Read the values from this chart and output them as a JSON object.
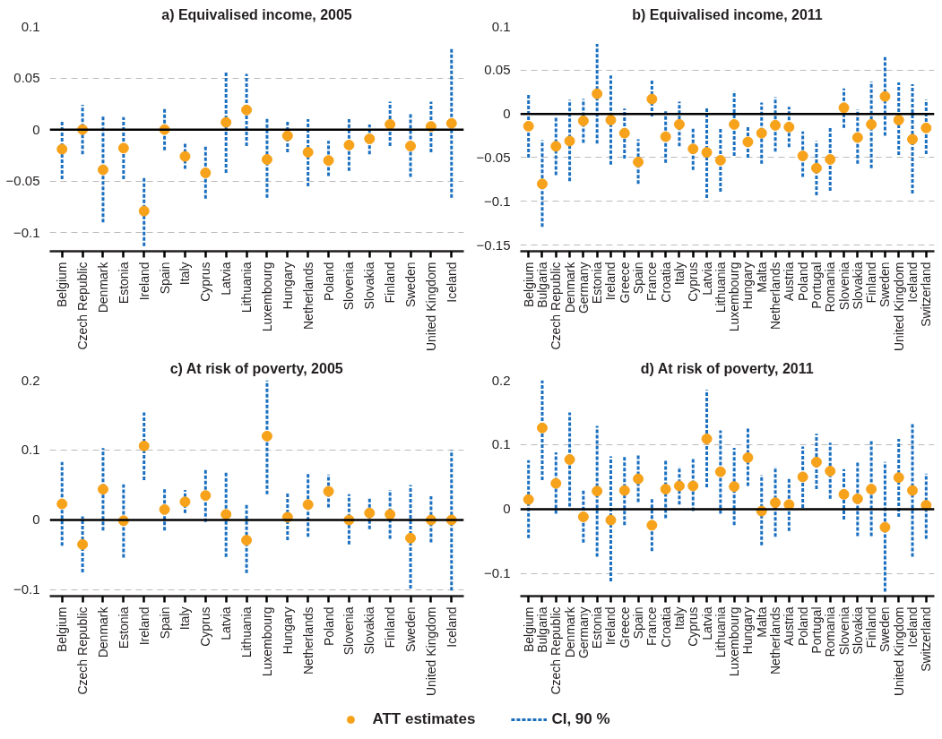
{
  "chart_data": [
    {
      "type": "scatter",
      "title": "a) Equivalised income, 2005",
      "categories": [
        "Belgium",
        "Czech Republic",
        "Denmark",
        "Estonia",
        "Ireland",
        "Spain",
        "Italy",
        "Cyprus",
        "Latvia",
        "Lithuania",
        "Luxembourg",
        "Hungary",
        "Netherlands",
        "Poland",
        "Slovenia",
        "Slovakia",
        "Finland",
        "Sweden",
        "United Kingdom",
        "Iceland"
      ],
      "series": [
        {
          "color": "#f7a21b",
          "values": [
            -0.019,
            0,
            -0.039,
            -0.018,
            -0.079,
            0,
            -0.026,
            -0.042,
            0.007,
            0.019,
            -0.029,
            -0.006,
            -0.022,
            -0.03,
            -0.015,
            -0.009,
            0.005,
            -0.016,
            0.003,
            0.006
          ],
          "errors": [
            [
              -0.048,
              0.009
            ],
            [
              -0.024,
              0.024
            ],
            [
              -0.09,
              0.014
            ],
            [
              -0.048,
              0.012
            ],
            [
              -0.113,
              -0.046
            ],
            [
              -0.02,
              0.02
            ],
            [
              -0.038,
              -0.013
            ],
            [
              -0.067,
              -0.016
            ],
            [
              -0.042,
              0.057
            ],
            [
              -0.016,
              0.054
            ],
            [
              -0.066,
              0.011
            ],
            [
              -0.022,
              0.009
            ],
            [
              -0.055,
              0.01
            ],
            [
              -0.045,
              -0.011
            ],
            [
              -0.04,
              0.01
            ],
            [
              -0.024,
              0.005
            ],
            [
              -0.016,
              0.027
            ],
            [
              -0.046,
              0.015
            ],
            [
              -0.022,
              0.027
            ],
            [
              -0.066,
              0.078
            ]
          ]
        }
      ],
      "ylim": [
        -0.118,
        0.1
      ],
      "yticks": [
        {
          "value": -0.1,
          "label": "−0.1"
        },
        {
          "value": -0.05,
          "label": "−0.05"
        },
        0,
        0.05,
        0.1
      ],
      "ref_lines": [
        {
          "axis": "y",
          "value": 0,
          "color": "#000000"
        }
      ],
      "grid": "y",
      "marker": "circle"
    },
    {
      "type": "scatter",
      "title": "b) Equivalised income, 2011",
      "categories": [
        "Belgium",
        "Bulgaria",
        "Czech Republic",
        "Denmark",
        "Germany",
        "Estonia",
        "Ireland",
        "Greece",
        "Spain",
        "France",
        "Croatia",
        "Italy",
        "Cyprus",
        "Latvia",
        "Lithuania",
        "Luxembourg",
        "Hungary",
        "Malta",
        "Netherlands",
        "Austria",
        "Poland",
        "Portugal",
        "Romania",
        "Slovenia",
        "Slovakia",
        "Finland",
        "Sweden",
        "United Kingdom",
        "Iceland",
        "Switzerland"
      ],
      "series": [
        {
          "color": "#f7a21b",
          "values": [
            -0.014,
            -0.08,
            -0.037,
            -0.031,
            -0.008,
            0.023,
            -0.007,
            -0.022,
            -0.055,
            0.017,
            -0.026,
            -0.012,
            -0.04,
            -0.044,
            -0.053,
            -0.012,
            -0.032,
            -0.022,
            -0.013,
            -0.015,
            -0.048,
            -0.062,
            -0.052,
            0.007,
            -0.027,
            -0.012,
            0.02,
            -0.007,
            -0.029,
            -0.016
          ],
          "errors": [
            [
              -0.05,
              0.022
            ],
            [
              -0.129,
              -0.03
            ],
            [
              -0.07,
              -0.003
            ],
            [
              -0.077,
              0.016
            ],
            [
              -0.033,
              0.017
            ],
            [
              -0.034,
              0.08
            ],
            [
              -0.058,
              0.044
            ],
            [
              -0.051,
              0.006
            ],
            [
              -0.08,
              -0.029
            ],
            [
              -0.003,
              0.038
            ],
            [
              -0.056,
              0.003
            ],
            [
              -0.037,
              0.014
            ],
            [
              -0.064,
              -0.017
            ],
            [
              -0.096,
              0.008
            ],
            [
              -0.089,
              -0.016
            ],
            [
              -0.048,
              0.026
            ],
            [
              -0.05,
              -0.014
            ],
            [
              -0.057,
              0.013
            ],
            [
              -0.043,
              0.019
            ],
            [
              -0.038,
              0.008
            ],
            [
              -0.072,
              -0.02
            ],
            [
              -0.093,
              -0.031
            ],
            [
              -0.088,
              -0.015
            ],
            [
              -0.016,
              0.029
            ],
            [
              -0.057,
              0.005
            ],
            [
              -0.062,
              0.037
            ],
            [
              -0.025,
              0.065
            ],
            [
              -0.047,
              0.036
            ],
            [
              -0.091,
              0.034
            ],
            [
              -0.046,
              0.016
            ]
          ]
        }
      ],
      "ylim": [
        -0.157,
        0.1
      ],
      "yticks": [
        {
          "value": -0.15,
          "label": "−0.15"
        },
        {
          "value": -0.1,
          "label": "−0.1"
        },
        {
          "value": -0.05,
          "label": "−0.05"
        },
        0,
        0.05,
        0.1
      ],
      "ref_lines": [
        {
          "axis": "y",
          "value": 0,
          "color": "#000000"
        }
      ],
      "grid": "y",
      "marker": "circle"
    },
    {
      "type": "scatter",
      "title": "c) At risk of poverty, 2005",
      "categories": [
        "Belgium",
        "Czech Republic",
        "Denmark",
        "Estonia",
        "Ireland",
        "Spain",
        "Italy",
        "Cyprus",
        "Latvia",
        "Lithuania",
        "Luxembourg",
        "Hungary",
        "Netherlands",
        "Poland",
        "Slovenia",
        "Slovakia",
        "Finland",
        "Sweden",
        "United Kingdom",
        "Iceland"
      ],
      "series": [
        {
          "color": "#f7a21b",
          "values": [
            0.023,
            -0.035,
            0.044,
            -0.001,
            0.106,
            0.015,
            0.026,
            0.035,
            0.008,
            -0.029,
            0.12,
            0.004,
            0.022,
            0.041,
            0,
            0.01,
            0.008,
            -0.026,
            0,
            0
          ],
          "errors": [
            [
              -0.037,
              0.083
            ],
            [
              -0.075,
              0.005
            ],
            [
              -0.015,
              0.103
            ],
            [
              -0.054,
              0.051
            ],
            [
              0.057,
              0.154
            ],
            [
              -0.015,
              0.045
            ],
            [
              0.01,
              0.043
            ],
            [
              -0.003,
              0.073
            ],
            [
              -0.053,
              0.069
            ],
            [
              -0.076,
              0.022
            ],
            [
              0.037,
              0.2
            ],
            [
              -0.029,
              0.038
            ],
            [
              -0.024,
              0.067
            ],
            [
              0.018,
              0.065
            ],
            [
              -0.035,
              0.037
            ],
            [
              -0.013,
              0.033
            ],
            [
              -0.027,
              0.043
            ],
            [
              -0.098,
              0.05
            ],
            [
              -0.032,
              0.034
            ],
            [
              -0.101,
              0.1
            ]
          ]
        }
      ],
      "ylim": [
        -0.109,
        0.2
      ],
      "yticks": [
        {
          "value": -0.1,
          "label": "−0.1"
        },
        0,
        0.1,
        0.2
      ],
      "ref_lines": [
        {
          "axis": "y",
          "value": 0,
          "color": "#000000"
        }
      ],
      "grid": "y",
      "marker": "circle"
    },
    {
      "type": "scatter",
      "title": "d) At risk of poverty, 2011",
      "categories": [
        "Belgium",
        "Bulgaria",
        "Czech Republic",
        "Denmark",
        "Germany",
        "Estonia",
        "Ireland",
        "Greece",
        "Spain",
        "France",
        "Croatia",
        "Italy",
        "Cyprus",
        "Latvia",
        "Lithuania",
        "Luxembourg",
        "Hungary",
        "Malta",
        "Netherlands",
        "Austria",
        "Poland",
        "Portugal",
        "Romania",
        "Slovenia",
        "Slovakia",
        "Finland",
        "Sweden",
        "United Kingdom",
        "Iceland",
        "Switzerland"
      ],
      "series": [
        {
          "name": "ATT estimates",
          "color": "#f7a21b",
          "values": [
            0.015,
            0.126,
            0.04,
            0.077,
            -0.012,
            0.028,
            -0.017,
            0.029,
            0.047,
            -0.025,
            0.031,
            0.036,
            0.036,
            0.109,
            0.058,
            0.035,
            0.08,
            -0.003,
            0.01,
            0.007,
            0.05,
            0.073,
            0.059,
            0.023,
            0.016,
            0.031,
            -0.028,
            0.049,
            0.029,
            0.006
          ],
          "errors": [
            [
              -0.045,
              0.076
            ],
            [
              0.045,
              0.2
            ],
            [
              -0.007,
              0.088
            ],
            [
              0.004,
              0.15
            ],
            [
              -0.052,
              0.03
            ],
            [
              -0.074,
              0.129
            ],
            [
              -0.112,
              0.082
            ],
            [
              -0.025,
              0.082
            ],
            [
              0.011,
              0.084
            ],
            [
              -0.065,
              0.016
            ],
            [
              -0.014,
              0.076
            ],
            [
              0.007,
              0.066
            ],
            [
              -0.003,
              0.078
            ],
            [
              0.034,
              0.185
            ],
            [
              -0.007,
              0.122
            ],
            [
              -0.025,
              0.095
            ],
            [
              0.036,
              0.125
            ],
            [
              -0.056,
              0.053
            ],
            [
              -0.043,
              0.066
            ],
            [
              -0.034,
              0.047
            ],
            [
              0.002,
              0.097
            ],
            [
              0.031,
              0.117
            ],
            [
              0.016,
              0.103
            ],
            [
              -0.016,
              0.062
            ],
            [
              -0.042,
              0.075
            ],
            [
              -0.042,
              0.106
            ],
            [
              -0.128,
              0.073
            ],
            [
              -0.012,
              0.109
            ],
            [
              -0.074,
              0.132
            ],
            [
              -0.046,
              0.055
            ]
          ]
        }
      ],
      "ylim": [
        -0.135,
        0.2
      ],
      "yticks": [
        {
          "value": -0.1,
          "label": "−0.1"
        },
        0,
        0.1,
        0.2
      ],
      "ref_lines": [
        {
          "axis": "y",
          "value": 0,
          "color": "#000000"
        }
      ],
      "grid": "y",
      "marker": "circle",
      "legend": "bottom",
      "annotations": [
        "CI, 90 %"
      ]
    }
  ]
}
